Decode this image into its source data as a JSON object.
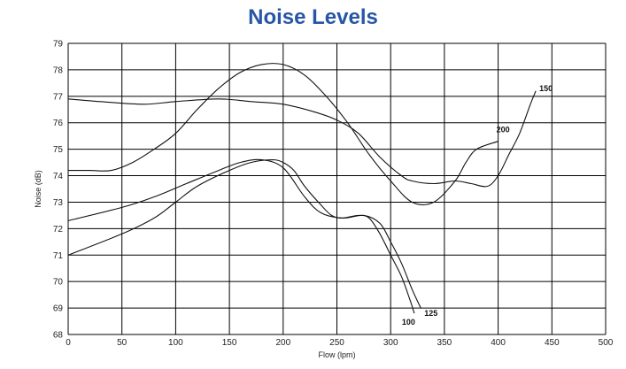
{
  "colors": {
    "title": "#2756a6",
    "grid": "#000000",
    "line": "#111111"
  },
  "chart_data": {
    "type": "line",
    "title": "Noise Levels",
    "xlabel": "Flow (lpm)",
    "ylabel": "Noise (dB)",
    "xlim": [
      0,
      500
    ],
    "ylim": [
      68,
      79
    ],
    "x_ticks": [
      0,
      50,
      100,
      150,
      200,
      250,
      300,
      350,
      400,
      450,
      500
    ],
    "y_ticks": [
      68,
      69,
      70,
      71,
      72,
      73,
      74,
      75,
      76,
      77,
      78,
      79
    ],
    "grid": true,
    "series": [
      {
        "name": "100",
        "points": [
          [
            0,
            71.0
          ],
          [
            50,
            71.8
          ],
          [
            80,
            72.4
          ],
          [
            100,
            73.0
          ],
          [
            120,
            73.6
          ],
          [
            150,
            74.2
          ],
          [
            170,
            74.5
          ],
          [
            190,
            74.6
          ],
          [
            200,
            74.5
          ],
          [
            210,
            74.2
          ],
          [
            220,
            73.6
          ],
          [
            235,
            72.9
          ],
          [
            245,
            72.5
          ],
          [
            255,
            72.4
          ],
          [
            270,
            72.5
          ],
          [
            280,
            72.4
          ],
          [
            290,
            71.8
          ],
          [
            300,
            71.0
          ],
          [
            310,
            70.2
          ],
          [
            318,
            69.3
          ],
          [
            322,
            68.8
          ]
        ]
      },
      {
        "name": "125",
        "points": [
          [
            0,
            72.3
          ],
          [
            50,
            72.8
          ],
          [
            80,
            73.2
          ],
          [
            110,
            73.7
          ],
          [
            140,
            74.2
          ],
          [
            160,
            74.5
          ],
          [
            180,
            74.6
          ],
          [
            200,
            74.3
          ],
          [
            220,
            73.2
          ],
          [
            235,
            72.6
          ],
          [
            255,
            72.4
          ],
          [
            275,
            72.5
          ],
          [
            290,
            72.2
          ],
          [
            300,
            71.5
          ],
          [
            310,
            70.7
          ],
          [
            320,
            69.7
          ],
          [
            328,
            69.0
          ]
        ]
      },
      {
        "name": "150",
        "points": [
          [
            0,
            76.9
          ],
          [
            30,
            76.8
          ],
          [
            70,
            76.7
          ],
          [
            100,
            76.8
          ],
          [
            140,
            76.9
          ],
          [
            170,
            76.8
          ],
          [
            200,
            76.7
          ],
          [
            230,
            76.4
          ],
          [
            250,
            76.1
          ],
          [
            270,
            75.6
          ],
          [
            290,
            74.7
          ],
          [
            310,
            74.0
          ],
          [
            320,
            73.8
          ],
          [
            340,
            73.7
          ],
          [
            360,
            73.8
          ],
          [
            375,
            73.7
          ],
          [
            390,
            73.6
          ],
          [
            400,
            74.0
          ],
          [
            410,
            74.8
          ],
          [
            420,
            75.6
          ],
          [
            430,
            76.7
          ],
          [
            435,
            77.2
          ]
        ]
      },
      {
        "name": "200",
        "points": [
          [
            0,
            74.2
          ],
          [
            20,
            74.2
          ],
          [
            40,
            74.2
          ],
          [
            60,
            74.5
          ],
          [
            80,
            75.0
          ],
          [
            100,
            75.6
          ],
          [
            120,
            76.5
          ],
          [
            140,
            77.3
          ],
          [
            160,
            77.9
          ],
          [
            180,
            78.2
          ],
          [
            200,
            78.2
          ],
          [
            220,
            77.8
          ],
          [
            240,
            77.0
          ],
          [
            260,
            76.0
          ],
          [
            280,
            74.8
          ],
          [
            300,
            73.8
          ],
          [
            320,
            73.0
          ],
          [
            340,
            73.0
          ],
          [
            360,
            73.8
          ],
          [
            370,
            74.5
          ],
          [
            380,
            75.0
          ],
          [
            400,
            75.3
          ]
        ]
      }
    ]
  }
}
